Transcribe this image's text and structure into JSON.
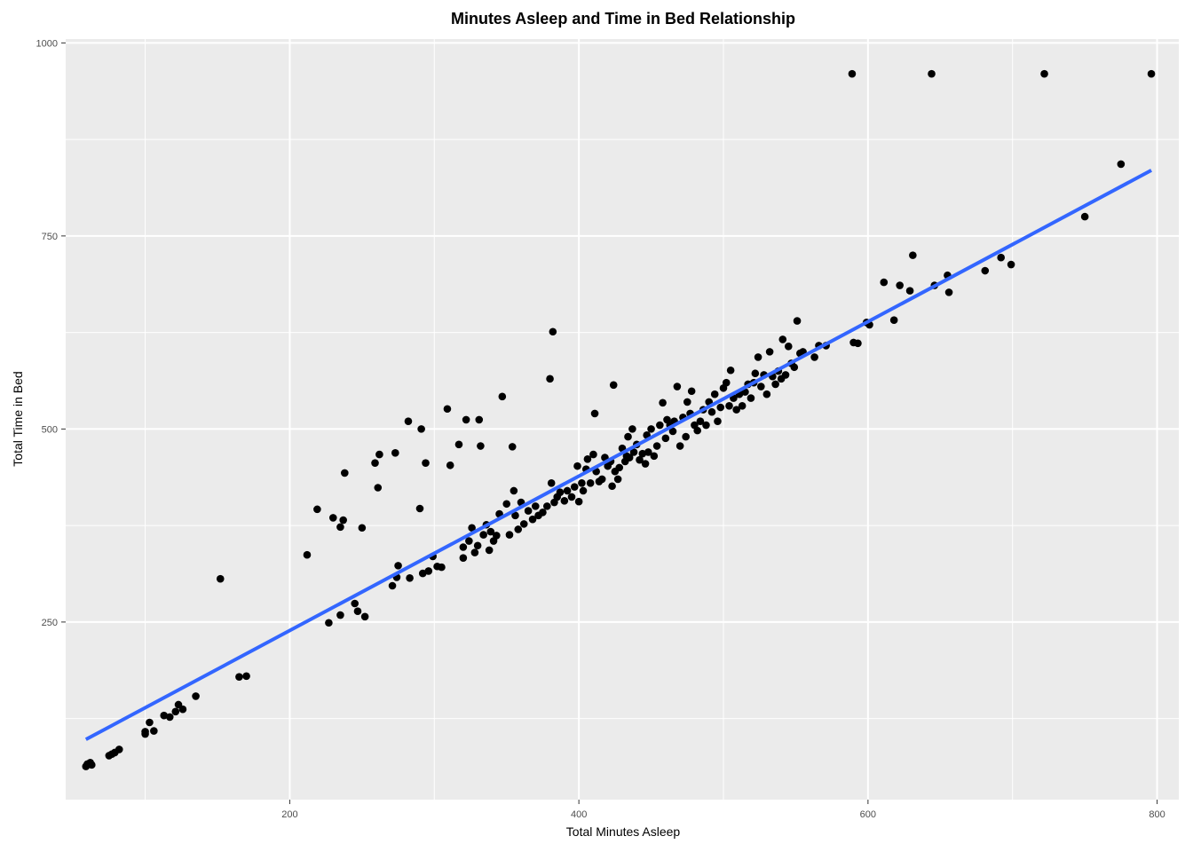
{
  "chart_data": {
    "type": "scatter",
    "title": "Minutes Asleep and Time in Bed Relationship",
    "xlabel": "Total Minutes Asleep",
    "ylabel": "Total Time in Bed",
    "xlim": [
      45,
      815
    ],
    "ylim": [
      20,
      1005
    ],
    "x_ticks": [
      "200",
      "400",
      "600",
      "800"
    ],
    "y_ticks": [
      "250",
      "500",
      "750",
      "1000"
    ],
    "grid": true,
    "background": "#ebebeb",
    "point_color": "#000000",
    "trend_color": "#3366ff",
    "trend_line": {
      "x": [
        59,
        796
      ],
      "y": [
        98,
        835
      ]
    },
    "points": [
      [
        59,
        63
      ],
      [
        60,
        66
      ],
      [
        62,
        68
      ],
      [
        63,
        65
      ],
      [
        75,
        77
      ],
      [
        77,
        79
      ],
      [
        79,
        81
      ],
      [
        82,
        85
      ],
      [
        100,
        105
      ],
      [
        100,
        108
      ],
      [
        103,
        120
      ],
      [
        106,
        109
      ],
      [
        113,
        129
      ],
      [
        117,
        127
      ],
      [
        121,
        134
      ],
      [
        123,
        143
      ],
      [
        126,
        137
      ],
      [
        135,
        154
      ],
      [
        152,
        306
      ],
      [
        165,
        179
      ],
      [
        170,
        180
      ],
      [
        212,
        337
      ],
      [
        219,
        396
      ],
      [
        227,
        249
      ],
      [
        230,
        385
      ],
      [
        235,
        259
      ],
      [
        235,
        373
      ],
      [
        237,
        382
      ],
      [
        238,
        443
      ],
      [
        245,
        274
      ],
      [
        247,
        264
      ],
      [
        250,
        372
      ],
      [
        252,
        257
      ],
      [
        259,
        456
      ],
      [
        261,
        424
      ],
      [
        262,
        467
      ],
      [
        271,
        297
      ],
      [
        273,
        469
      ],
      [
        274,
        308
      ],
      [
        275,
        323
      ],
      [
        282,
        510
      ],
      [
        283,
        307
      ],
      [
        290,
        397
      ],
      [
        291,
        500
      ],
      [
        292,
        313
      ],
      [
        294,
        456
      ],
      [
        296,
        316
      ],
      [
        299,
        335
      ],
      [
        302,
        322
      ],
      [
        305,
        321
      ],
      [
        309,
        526
      ],
      [
        311,
        453
      ],
      [
        317,
        480
      ],
      [
        320,
        333
      ],
      [
        320,
        347
      ],
      [
        322,
        512
      ],
      [
        324,
        355
      ],
      [
        326,
        372
      ],
      [
        328,
        340
      ],
      [
        330,
        349
      ],
      [
        331,
        512
      ],
      [
        332,
        478
      ],
      [
        334,
        363
      ],
      [
        336,
        376
      ],
      [
        338,
        343
      ],
      [
        339,
        367
      ],
      [
        341,
        355
      ],
      [
        343,
        362
      ],
      [
        345,
        390
      ],
      [
        347,
        542
      ],
      [
        350,
        403
      ],
      [
        352,
        363
      ],
      [
        354,
        477
      ],
      [
        355,
        420
      ],
      [
        356,
        388
      ],
      [
        358,
        370
      ],
      [
        360,
        405
      ],
      [
        362,
        377
      ],
      [
        365,
        394
      ],
      [
        368,
        383
      ],
      [
        370,
        400
      ],
      [
        372,
        388
      ],
      [
        375,
        392
      ],
      [
        378,
        400
      ],
      [
        380,
        565
      ],
      [
        381,
        430
      ],
      [
        382,
        626
      ],
      [
        383,
        405
      ],
      [
        385,
        412
      ],
      [
        387,
        418
      ],
      [
        390,
        407
      ],
      [
        392,
        420
      ],
      [
        395,
        412
      ],
      [
        397,
        425
      ],
      [
        400,
        406
      ],
      [
        399,
        452
      ],
      [
        402,
        430
      ],
      [
        403,
        420
      ],
      [
        405,
        448
      ],
      [
        406,
        461
      ],
      [
        408,
        430
      ],
      [
        410,
        467
      ],
      [
        411,
        520
      ],
      [
        412,
        445
      ],
      [
        414,
        432
      ],
      [
        416,
        435
      ],
      [
        418,
        463
      ],
      [
        420,
        452
      ],
      [
        422,
        458
      ],
      [
        423,
        426
      ],
      [
        424,
        557
      ],
      [
        425,
        445
      ],
      [
        427,
        435
      ],
      [
        428,
        450
      ],
      [
        430,
        475
      ],
      [
        432,
        458
      ],
      [
        433,
        465
      ],
      [
        434,
        490
      ],
      [
        435,
        463
      ],
      [
        437,
        500
      ],
      [
        438,
        470
      ],
      [
        440,
        480
      ],
      [
        442,
        460
      ],
      [
        444,
        468
      ],
      [
        446,
        455
      ],
      [
        447,
        492
      ],
      [
        448,
        470
      ],
      [
        450,
        500
      ],
      [
        452,
        465
      ],
      [
        454,
        478
      ],
      [
        456,
        505
      ],
      [
        458,
        534
      ],
      [
        460,
        488
      ],
      [
        461,
        512
      ],
      [
        463,
        505
      ],
      [
        465,
        497
      ],
      [
        466,
        510
      ],
      [
        468,
        555
      ],
      [
        470,
        478
      ],
      [
        472,
        515
      ],
      [
        474,
        490
      ],
      [
        475,
        535
      ],
      [
        477,
        520
      ],
      [
        478,
        549
      ],
      [
        480,
        505
      ],
      [
        482,
        498
      ],
      [
        484,
        510
      ],
      [
        486,
        525
      ],
      [
        488,
        505
      ],
      [
        490,
        535
      ],
      [
        492,
        522
      ],
      [
        494,
        545
      ],
      [
        496,
        510
      ],
      [
        498,
        528
      ],
      [
        500,
        553
      ],
      [
        502,
        560
      ],
      [
        504,
        530
      ],
      [
        505,
        576
      ],
      [
        507,
        540
      ],
      [
        509,
        525
      ],
      [
        511,
        545
      ],
      [
        513,
        530
      ],
      [
        515,
        548
      ],
      [
        517,
        558
      ],
      [
        519,
        540
      ],
      [
        521,
        560
      ],
      [
        522,
        572
      ],
      [
        524,
        593
      ],
      [
        526,
        555
      ],
      [
        528,
        570
      ],
      [
        530,
        545
      ],
      [
        532,
        600
      ],
      [
        534,
        568
      ],
      [
        536,
        558
      ],
      [
        538,
        575
      ],
      [
        540,
        565
      ],
      [
        541,
        616
      ],
      [
        543,
        570
      ],
      [
        545,
        607
      ],
      [
        547,
        585
      ],
      [
        549,
        580
      ],
      [
        551,
        640
      ],
      [
        553,
        598
      ],
      [
        555,
        600
      ],
      [
        563,
        593
      ],
      [
        566,
        608
      ],
      [
        571,
        608
      ],
      [
        590,
        612
      ],
      [
        593,
        611
      ],
      [
        599,
        638
      ],
      [
        601,
        635
      ],
      [
        611,
        690
      ],
      [
        618,
        641
      ],
      [
        622,
        686
      ],
      [
        629,
        679
      ],
      [
        631,
        725
      ],
      [
        646,
        686
      ],
      [
        655,
        699
      ],
      [
        656,
        677
      ],
      [
        681,
        705
      ],
      [
        692,
        722
      ],
      [
        699,
        713
      ],
      [
        589,
        960
      ],
      [
        644,
        960
      ],
      [
        722,
        960
      ],
      [
        796,
        960
      ],
      [
        750,
        775
      ],
      [
        775,
        843
      ]
    ]
  }
}
